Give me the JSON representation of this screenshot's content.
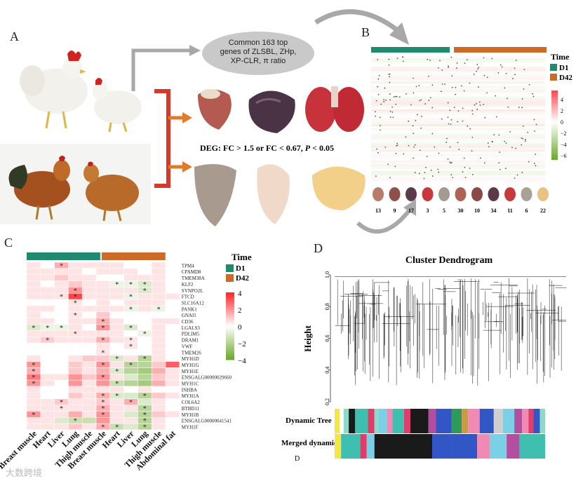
{
  "panels": {
    "a": "A",
    "b": "B",
    "c": "C",
    "d": "D"
  },
  "panel_a": {
    "oval_line1": "Common 163 top",
    "oval_line2": "genes of ZLSBL, ZHp,",
    "oval_line3": "XP-CLR, π ratio",
    "deg_prefix": "DEG: FC > 1.5 or FC < 0.67, ",
    "deg_p": "P",
    "deg_suffix": " < 0.05"
  },
  "panel_b": {
    "legend_title": "Time",
    "legend_items": [
      {
        "label": "D1",
        "color": "#1f8a6e"
      },
      {
        "label": "D42",
        "color": "#cc6a28"
      }
    ],
    "scale_ticks": [
      "4",
      "2",
      "0",
      "−2",
      "−4",
      "−6"
    ],
    "tissue_counts": [
      "13",
      "9",
      "17",
      "3",
      "5",
      "30",
      "10",
      "34",
      "11",
      "6",
      "22"
    ]
  },
  "chart_data": [
    {
      "type": "heatmap",
      "panel": "C",
      "legend_title": "Time",
      "groups": [
        {
          "label": "D1",
          "color": "#1f8a6e"
        },
        {
          "label": "D42",
          "color": "#cc6a28"
        }
      ],
      "color_scale": {
        "min": -4,
        "max": 4,
        "ticks": [
          "4",
          "2",
          "0",
          "−2",
          "−4"
        ]
      },
      "columns": [
        "Breast muscle",
        "Heart",
        "Liver",
        "Lung",
        "Thigh muscle",
        "Breast muscle",
        "Heart",
        "Liver",
        "Lung",
        "Thigh muscle",
        "Abdominal fat"
      ],
      "rows": [
        "TPM4",
        "CPAMD8",
        "TMEM38A",
        "KLF2",
        "SYNPO2L",
        "FTCD",
        "SLC16A12",
        "PANK1",
        "GNAI1",
        "CD36",
        "LGALS3",
        "PDLIM5",
        "DRAM1",
        "VWF",
        "TMEM26",
        "MYH1D",
        "MYH1G",
        "MYH1E",
        "ENSGALG00000029660",
        "MYH1C",
        "INHBA",
        "MYH1A",
        "COL6A2",
        "BTBD11",
        "MYH1B",
        "ENSGALG00000041541",
        "MYH1F"
      ],
      "values": [
        [
          0.5,
          0,
          1.5,
          0.5,
          0.5,
          0.5,
          0.5,
          0,
          0,
          0.5,
          0
        ],
        [
          0.5,
          0.5,
          0.5,
          0.5,
          0,
          0.5,
          0.5,
          0.5,
          0,
          0.5,
          0
        ],
        [
          0.5,
          0.5,
          1,
          0.5,
          0.5,
          0,
          0,
          0.5,
          0.5,
          0.5,
          0
        ],
        [
          0.5,
          0,
          0.5,
          1,
          0.5,
          0.5,
          -0.5,
          -0.5,
          -1,
          0.5,
          0
        ],
        [
          0.5,
          0.5,
          0.5,
          2,
          0.5,
          0.5,
          0.5,
          0.5,
          -1,
          0.5,
          0
        ],
        [
          0.5,
          0.5,
          0.5,
          3.5,
          0.5,
          0.5,
          0.5,
          -0.5,
          0.5,
          0.5,
          0.5
        ],
        [
          0,
          0,
          0,
          0.5,
          0,
          0.5,
          0,
          0.5,
          0.5,
          0.5,
          0
        ],
        [
          0.5,
          0.5,
          0,
          0.5,
          0.5,
          0.5,
          0.5,
          -0.5,
          0.5,
          -0.5,
          0
        ],
        [
          0.5,
          0,
          0,
          0.5,
          0,
          1,
          0,
          0,
          0,
          0,
          0
        ],
        [
          0.5,
          0.5,
          0,
          0.5,
          0.5,
          1.5,
          0.5,
          0,
          0,
          0.5,
          0.5
        ],
        [
          -1,
          -0.5,
          -0.5,
          0.5,
          0,
          2,
          0.5,
          -1,
          0,
          0.5,
          0
        ],
        [
          0.5,
          0.5,
          0.5,
          0.5,
          0.5,
          0.5,
          0.5,
          0,
          -0.5,
          0.5,
          0
        ],
        [
          0.5,
          1,
          0.5,
          0.5,
          0.5,
          1.5,
          0.5,
          0.5,
          0,
          0.5,
          0
        ],
        [
          0,
          0,
          0,
          0,
          0,
          0.5,
          0,
          0.5,
          0,
          0.5,
          0
        ],
        [
          0,
          0,
          0,
          0,
          0,
          0.5,
          0,
          0,
          0,
          0.5,
          0
        ],
        [
          0.5,
          0,
          0,
          0.5,
          1,
          1,
          -1,
          0.5,
          -2,
          0.5,
          0
        ],
        [
          2,
          0,
          0,
          1,
          0.5,
          2,
          0.5,
          -2,
          -2,
          1,
          3
        ],
        [
          1.5,
          0,
          0,
          1,
          0.5,
          1.5,
          -1,
          -2,
          -2.5,
          1.5,
          0.5
        ],
        [
          2.5,
          0.5,
          0.5,
          2,
          1,
          2,
          0.5,
          -1,
          -2,
          1,
          0.5
        ],
        [
          2,
          0.5,
          0,
          2,
          0.5,
          2,
          -1.5,
          -2,
          -2.5,
          1.5,
          0.5
        ],
        [
          0.5,
          0,
          0,
          0.5,
          0.5,
          0.5,
          0.5,
          0,
          0.5,
          0,
          0
        ],
        [
          0.5,
          0,
          0,
          1,
          0.5,
          1.5,
          -1,
          -1,
          -2,
          1,
          0.5
        ],
        [
          0.5,
          0.5,
          1,
          0.5,
          0.5,
          1,
          0.5,
          1.5,
          -1,
          0.5,
          0
        ],
        [
          0.5,
          0.5,
          0.5,
          0.5,
          0.5,
          1.5,
          0.5,
          0.5,
          -2,
          0.5,
          0
        ],
        [
          2,
          0.5,
          0.5,
          1.5,
          0.5,
          2,
          0.5,
          -1,
          -2,
          1,
          0.5
        ],
        [
          0.5,
          0.5,
          -1,
          -1.5,
          -1.5,
          2,
          0.5,
          0.5,
          -2,
          0.5,
          0
        ],
        [
          0.5,
          0.5,
          0.5,
          1,
          0.5,
          1.5,
          -1.5,
          -1,
          -2,
          0.5,
          0
        ]
      ],
      "significant": [
        [
          0,
          2
        ],
        [
          3,
          6
        ],
        [
          3,
          7
        ],
        [
          3,
          8
        ],
        [
          4,
          3
        ],
        [
          4,
          8
        ],
        [
          5,
          3
        ],
        [
          5,
          2
        ],
        [
          5,
          7
        ],
        [
          6,
          3
        ],
        [
          7,
          7
        ],
        [
          7,
          9
        ],
        [
          8,
          3
        ],
        [
          9,
          5
        ],
        [
          10,
          0
        ],
        [
          10,
          1
        ],
        [
          10,
          2
        ],
        [
          10,
          5
        ],
        [
          10,
          7
        ],
        [
          11,
          3
        ],
        [
          11,
          8
        ],
        [
          12,
          1
        ],
        [
          12,
          5
        ],
        [
          12,
          7
        ],
        [
          13,
          7
        ],
        [
          14,
          5
        ],
        [
          15,
          6
        ],
        [
          15,
          8
        ],
        [
          16,
          0
        ],
        [
          16,
          5
        ],
        [
          16,
          7
        ],
        [
          17,
          0
        ],
        [
          17,
          6
        ],
        [
          18,
          0
        ],
        [
          18,
          5
        ],
        [
          19,
          0
        ],
        [
          19,
          6
        ],
        [
          21,
          5
        ],
        [
          21,
          6
        ],
        [
          21,
          8
        ],
        [
          22,
          2
        ],
        [
          22,
          5
        ],
        [
          22,
          7
        ],
        [
          23,
          2
        ],
        [
          23,
          5
        ],
        [
          23,
          8
        ],
        [
          24,
          0
        ],
        [
          24,
          5
        ],
        [
          24,
          8
        ],
        [
          25,
          3
        ],
        [
          25,
          8
        ],
        [
          26,
          5
        ],
        [
          26,
          6
        ],
        [
          26,
          8
        ]
      ],
      "sig_mark": "*"
    },
    {
      "type": "dendrogram",
      "panel": "D",
      "title": "Cluster Dendrogram",
      "ylabel": "Height",
      "ylim": [
        0.2,
        1.0
      ],
      "yticks": [
        "0.2",
        "0.4",
        "0.6",
        "0.8",
        "1.0"
      ],
      "color_bars": [
        "Dynamic Tree",
        "Merged dynamic"
      ],
      "footnote": "D"
    }
  ],
  "watermark": "大数跨境"
}
